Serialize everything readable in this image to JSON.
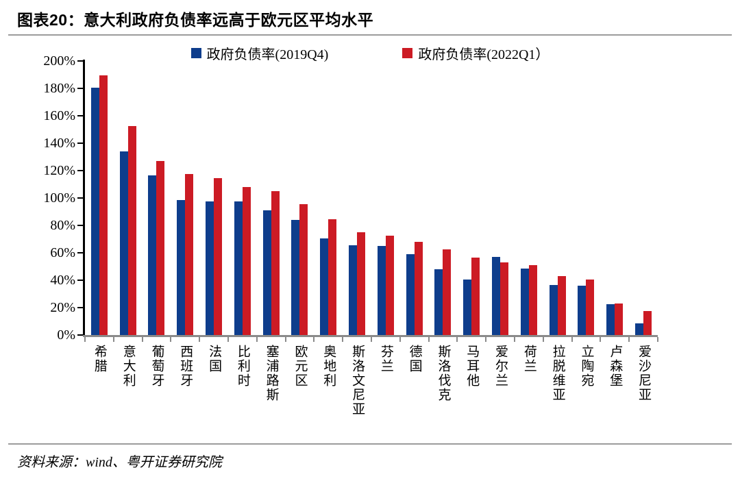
{
  "header": {
    "title": "图表20：意大利政府负债率远高于欧元区平均水平"
  },
  "footer": {
    "source": "资料来源：wind、粤开证券研究院"
  },
  "colors": {
    "series_2019q4": "#0E3D8C",
    "series_2022q1": "#CC1B24",
    "axis_x": "#8a8a8a",
    "axis_y": "#000000",
    "rule": "#9b9b9b"
  },
  "chart_data": {
    "type": "bar",
    "title": "图表20：意大利政府负债率远高于欧元区平均水平",
    "xlabel": "",
    "ylabel": "",
    "ylim": [
      0,
      200
    ],
    "ytick_step": 20,
    "ytick_labels": [
      "0%",
      "20%",
      "40%",
      "60%",
      "80%",
      "100%",
      "120%",
      "140%",
      "160%",
      "180%",
      "200%"
    ],
    "grid": false,
    "legend_position": "top",
    "categories": [
      "希腊",
      "意大利",
      "葡萄牙",
      "西班牙",
      "法国",
      "比利时",
      "塞浦路斯",
      "欧元区",
      "奥地利",
      "斯洛文尼亚",
      "芬兰",
      "德国",
      "斯洛伐克",
      "马耳他",
      "爱尔兰",
      "荷兰",
      "拉脱维亚",
      "立陶宛",
      "卢森堡",
      "爱沙尼亚"
    ],
    "series": [
      {
        "name": "政府负债率(2019Q4)",
        "key": "2019q4",
        "color": "#0E3D8C",
        "values": [
          180.7,
          134.1,
          116.6,
          98.3,
          97.4,
          97.7,
          91.1,
          83.8,
          70.6,
          65.6,
          64.9,
          58.9,
          48.1,
          40.7,
          57.2,
          48.5,
          36.7,
          35.9,
          22.3,
          8.6
        ]
      },
      {
        "name": "政府负债率(2022Q1）",
        "key": "2022q1",
        "color": "#CC1B24",
        "values": [
          189.3,
          152.6,
          127.0,
          117.7,
          114.4,
          107.9,
          104.9,
          95.6,
          84.3,
          74.8,
          72.4,
          67.8,
          62.7,
          56.3,
          53.1,
          50.9,
          43.0,
          40.4,
          22.9,
          17.6
        ]
      }
    ]
  }
}
